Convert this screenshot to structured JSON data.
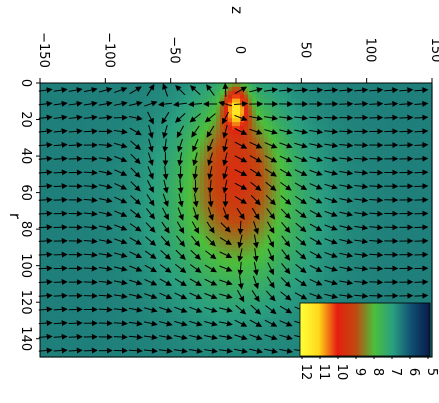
{
  "chart_data": {
    "type": "heatmap",
    "title": "",
    "xlabel": "z",
    "ylabel": "r",
    "x_ticks": [
      "−150",
      "−100",
      "−50",
      "0",
      "50",
      "100",
      "150"
    ],
    "y_ticks": [
      "0",
      "20",
      "40",
      "60",
      "80",
      "100",
      "120",
      "140"
    ],
    "xlim": [
      -150,
      150
    ],
    "ylim": [
      0,
      150
    ],
    "colorbar": {
      "range": [
        5,
        12
      ],
      "ticks": [
        "5",
        "6",
        "7",
        "8",
        "9",
        "10",
        "11",
        "12"
      ],
      "colors": [
        "#0a1a4a",
        "#0f4f72",
        "#2a9f80",
        "#4cbf3c",
        "#c04a10",
        "#e61e10",
        "#ffd91a",
        "#ffff3a"
      ]
    },
    "field": {
      "background_value": 6.6,
      "blobs": [
        {
          "z": 0,
          "r": 70,
          "width_z": 58,
          "width_r": 50,
          "value": 8.0
        },
        {
          "z": 0,
          "r": 50,
          "width_z": 30,
          "width_r": 38,
          "value": 9.6
        },
        {
          "z": 0,
          "r": 15,
          "width_z": 9,
          "width_r": 12,
          "value": 11.5
        }
      ]
    },
    "vectors": "outward flow from the bright jet head near z=0, r=0; circulating cell around r≈55–90 inside the green bubble; left-to-right flow elsewhere"
  }
}
